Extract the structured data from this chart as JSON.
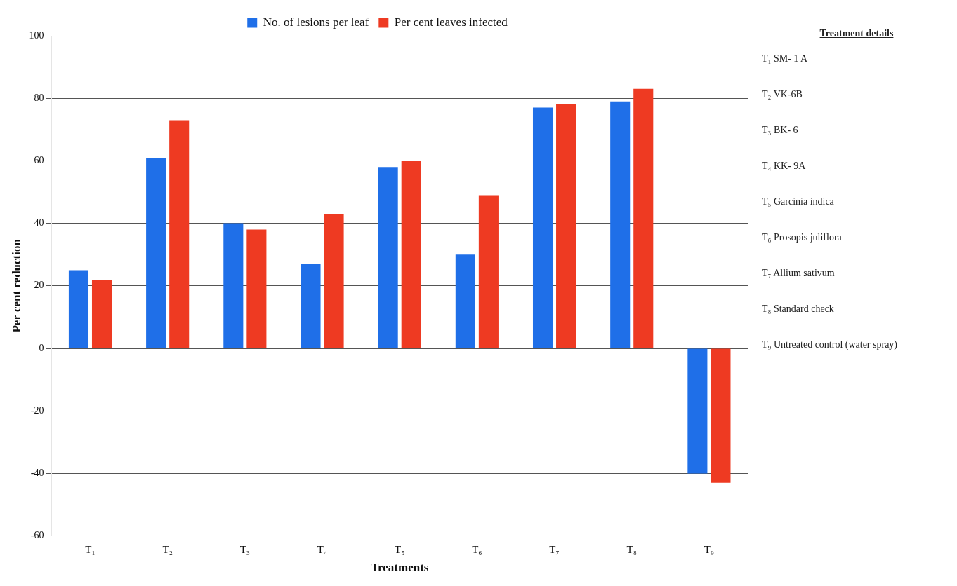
{
  "chart_data": {
    "type": "bar",
    "xlabel": "Treatments",
    "ylabel": "Per cent reduction",
    "categories": [
      "T₁",
      "T₂",
      "T₃",
      "T₄",
      "T₅",
      "T₆",
      "T₇",
      "T₈",
      "T₉"
    ],
    "series": [
      {
        "name": "No. of lesions per leaf",
        "color": "#1f6fe8",
        "values": [
          25,
          61,
          40,
          27,
          58,
          30,
          77,
          79,
          -40
        ]
      },
      {
        "name": "Per cent leaves infected",
        "color": "#ee3a22",
        "values": [
          22,
          73,
          38,
          43,
          60,
          49,
          78,
          83,
          -43
        ]
      }
    ],
    "ylim": [
      -60,
      100
    ],
    "yticks": [
      -60,
      -40,
      -20,
      0,
      20,
      40,
      60,
      80,
      100
    ],
    "grid": "y",
    "legend": "top",
    "annotations": [
      "Treatment details",
      "T₁  SM- 1 A",
      "T₂  VK-6B",
      "T₃  BK- 6",
      "T₄  KK- 9A",
      "T₅  Garcinia indica",
      "T₆  Prosopis juliflora",
      "T₇  Allium sativum",
      "T₈  Standard check",
      "T₉  Untreated control (water spray)"
    ]
  }
}
